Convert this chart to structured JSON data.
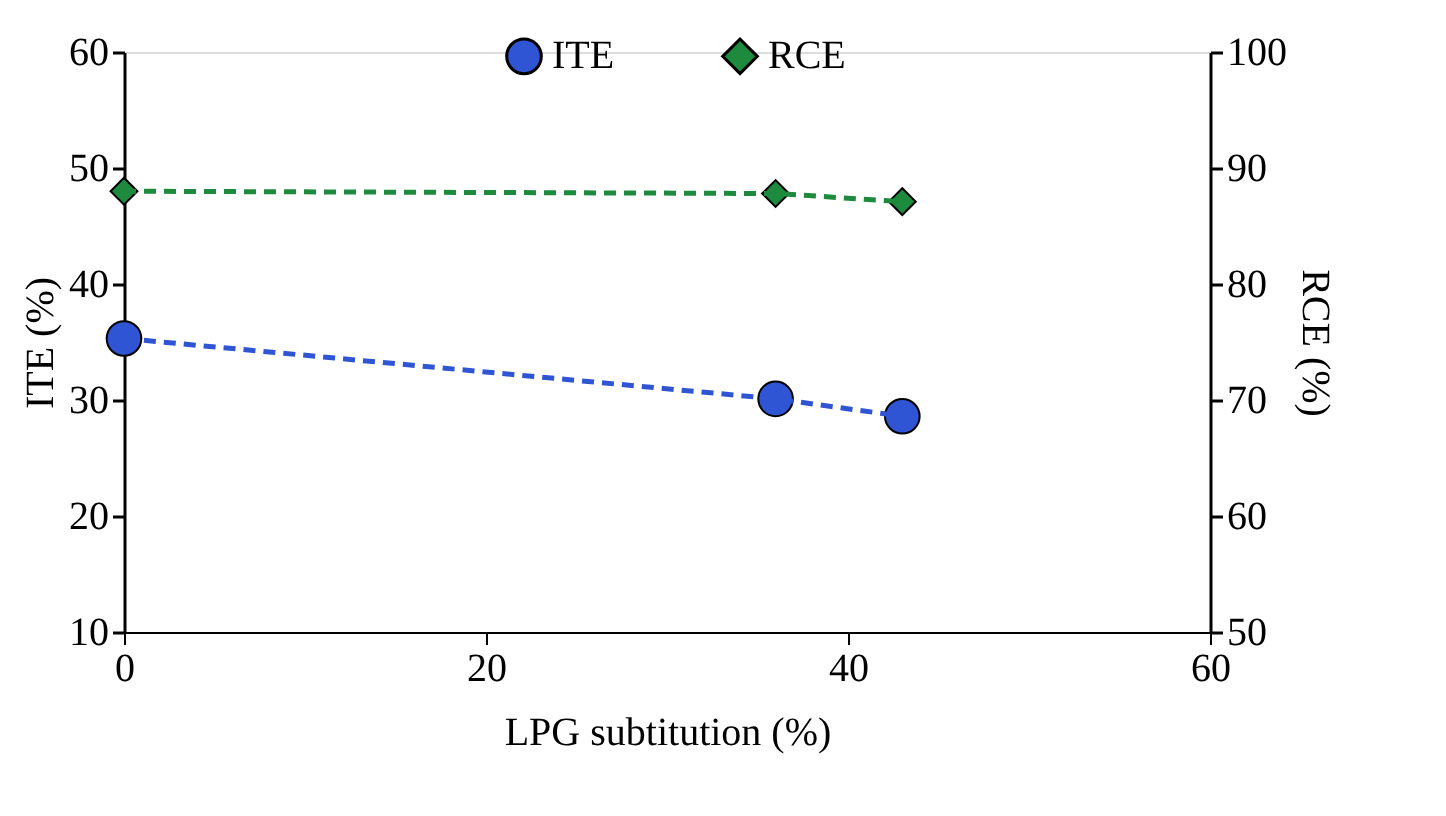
{
  "chart_data": {
    "type": "line",
    "xlabel": "LPG subtitution (%)",
    "ylabel": "ITE (%)",
    "y2label": "RCE (%)",
    "x": [
      0,
      36,
      43
    ],
    "series": [
      {
        "name": "ITE",
        "color": "#2f55d4",
        "values": [
          35.3,
          30.1,
          28.6
        ],
        "marker": "circle",
        "line_style": "dashed"
      },
      {
        "name": "RCE",
        "color": "#1e8a3e",
        "values": [
          88,
          87.8,
          87.1
        ],
        "marker": "diamond",
        "line_style": "dashed",
        "axis": "y2"
      }
    ],
    "xlim": [
      0,
      60
    ],
    "xticks": [
      0,
      20,
      40,
      60
    ],
    "ylim": [
      10,
      60
    ],
    "yticks": [
      10,
      20,
      30,
      40,
      50,
      60
    ],
    "y2lim": [
      50,
      100
    ],
    "y2ticks": [
      50,
      60,
      70,
      80,
      90,
      100
    ],
    "grid": false,
    "legend": "top"
  }
}
